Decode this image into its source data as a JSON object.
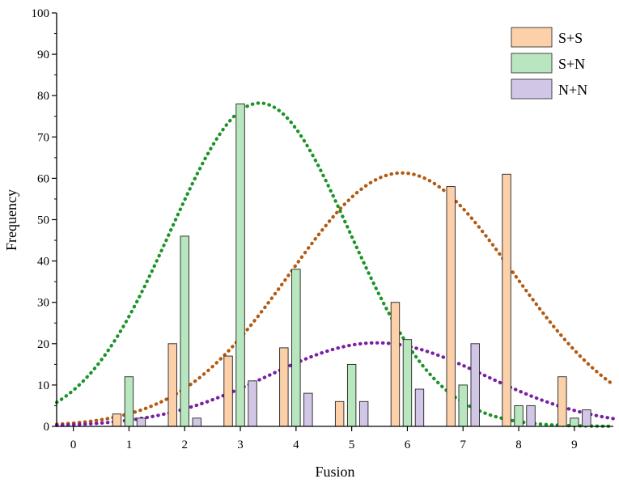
{
  "chart_data": {
    "type": "bar",
    "xlabel": "Fusion",
    "ylabel": "Frequency",
    "xlim": [
      -0.3,
      9.7
    ],
    "ylim": [
      0,
      100
    ],
    "x_ticks": [
      "0",
      "1",
      "2",
      "3",
      "4",
      "5",
      "6",
      "7",
      "8",
      "9"
    ],
    "y_ticks": [
      "0",
      "10",
      "20",
      "30",
      "40",
      "50",
      "60",
      "70",
      "80",
      "90",
      "100"
    ],
    "categories": [
      1,
      2,
      3,
      4,
      5,
      6,
      7,
      8,
      9
    ],
    "series": [
      {
        "name": "S+S",
        "color": "#fcd0a8",
        "values": [
          3,
          20,
          17,
          19,
          6,
          30,
          58,
          61,
          12
        ]
      },
      {
        "name": "S+N",
        "color": "#b8e6bf",
        "values": [
          12,
          46,
          78,
          38,
          15,
          21,
          10,
          5,
          2
        ]
      },
      {
        "name": "N+N",
        "color": "#d2c6e6",
        "values": [
          2,
          2,
          11,
          8,
          6,
          9,
          20,
          5,
          4
        ]
      }
    ],
    "fit_curves": [
      {
        "series": "S+S",
        "color": "#b35a12",
        "type": "normal",
        "peak": 61.3,
        "mean": 5.9,
        "sd": 2.0
      },
      {
        "series": "S+N",
        "color": "#1a9426",
        "type": "normal",
        "peak": 78.2,
        "mean": 3.35,
        "sd": 1.6
      },
      {
        "series": "N+N",
        "color": "#7a1fa2",
        "type": "normal",
        "peak": 20.2,
        "mean": 5.45,
        "sd": 1.95
      }
    ],
    "legend_position": "top-right",
    "grid": false
  }
}
